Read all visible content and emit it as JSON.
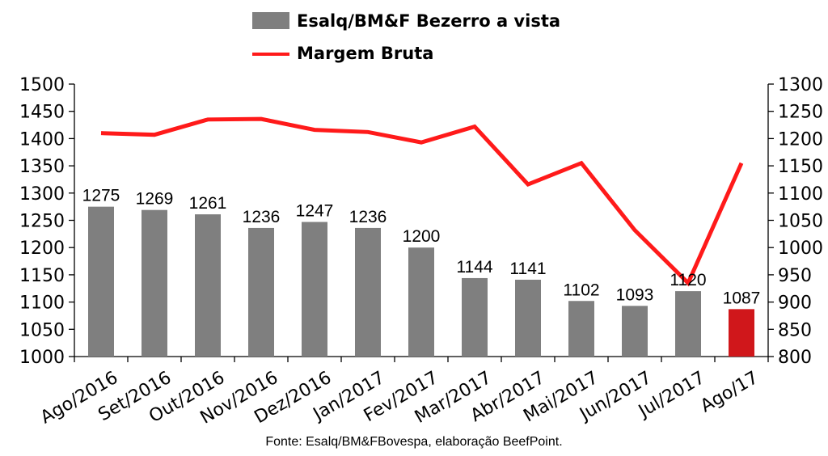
{
  "chart_data": {
    "type": "bar",
    "categories": [
      "Ago/2016",
      "Set/2016",
      "Out/2016",
      "Nov/2016",
      "Dez/2016",
      "Jan/2017",
      "Fev/2017",
      "Mar/2017",
      "Abr/2017",
      "Mai/2017",
      "Jun/2017",
      "Jul/2017",
      "Ago/17"
    ],
    "series": [
      {
        "name": "Esalq/BM&F Bezerro a vista",
        "type": "bar",
        "axis": "left",
        "color": "#7f7f7f",
        "highlight_color": "#d0171b",
        "highlight_index": 12,
        "values": [
          1275,
          1269,
          1261,
          1236,
          1247,
          1236,
          1200,
          1144,
          1141,
          1102,
          1093,
          1120,
          1087
        ],
        "data_labels": [
          "1275",
          "1269",
          "1261",
          "1236",
          "1247",
          "1236",
          "1200",
          "1144",
          "1141",
          "1102",
          "1093",
          "1120",
          "1087"
        ]
      },
      {
        "name": "Margem Bruta",
        "type": "line",
        "axis": "right",
        "color": "#ff1a1a",
        "values": [
          1210,
          1207,
          1235,
          1236,
          1216,
          1212,
          1193,
          1222,
          1116,
          1155,
          1032,
          935,
          1155
        ]
      }
    ],
    "ylim_left": [
      1000,
      1500
    ],
    "ylim_right": [
      800,
      1300
    ],
    "yticks_left": [
      "1000",
      "1050",
      "1100",
      "1150",
      "1200",
      "1250",
      "1300",
      "1350",
      "1400",
      "1450",
      "1500"
    ],
    "yticks_right": [
      "800",
      "850",
      "900",
      "950",
      "1000",
      "1050",
      "1100",
      "1150",
      "1200",
      "1250",
      "1300"
    ],
    "grid": false,
    "legend_position": "top",
    "source": "Fonte: Esalq/BM&FBovespa, elaboração BeefPoint."
  }
}
